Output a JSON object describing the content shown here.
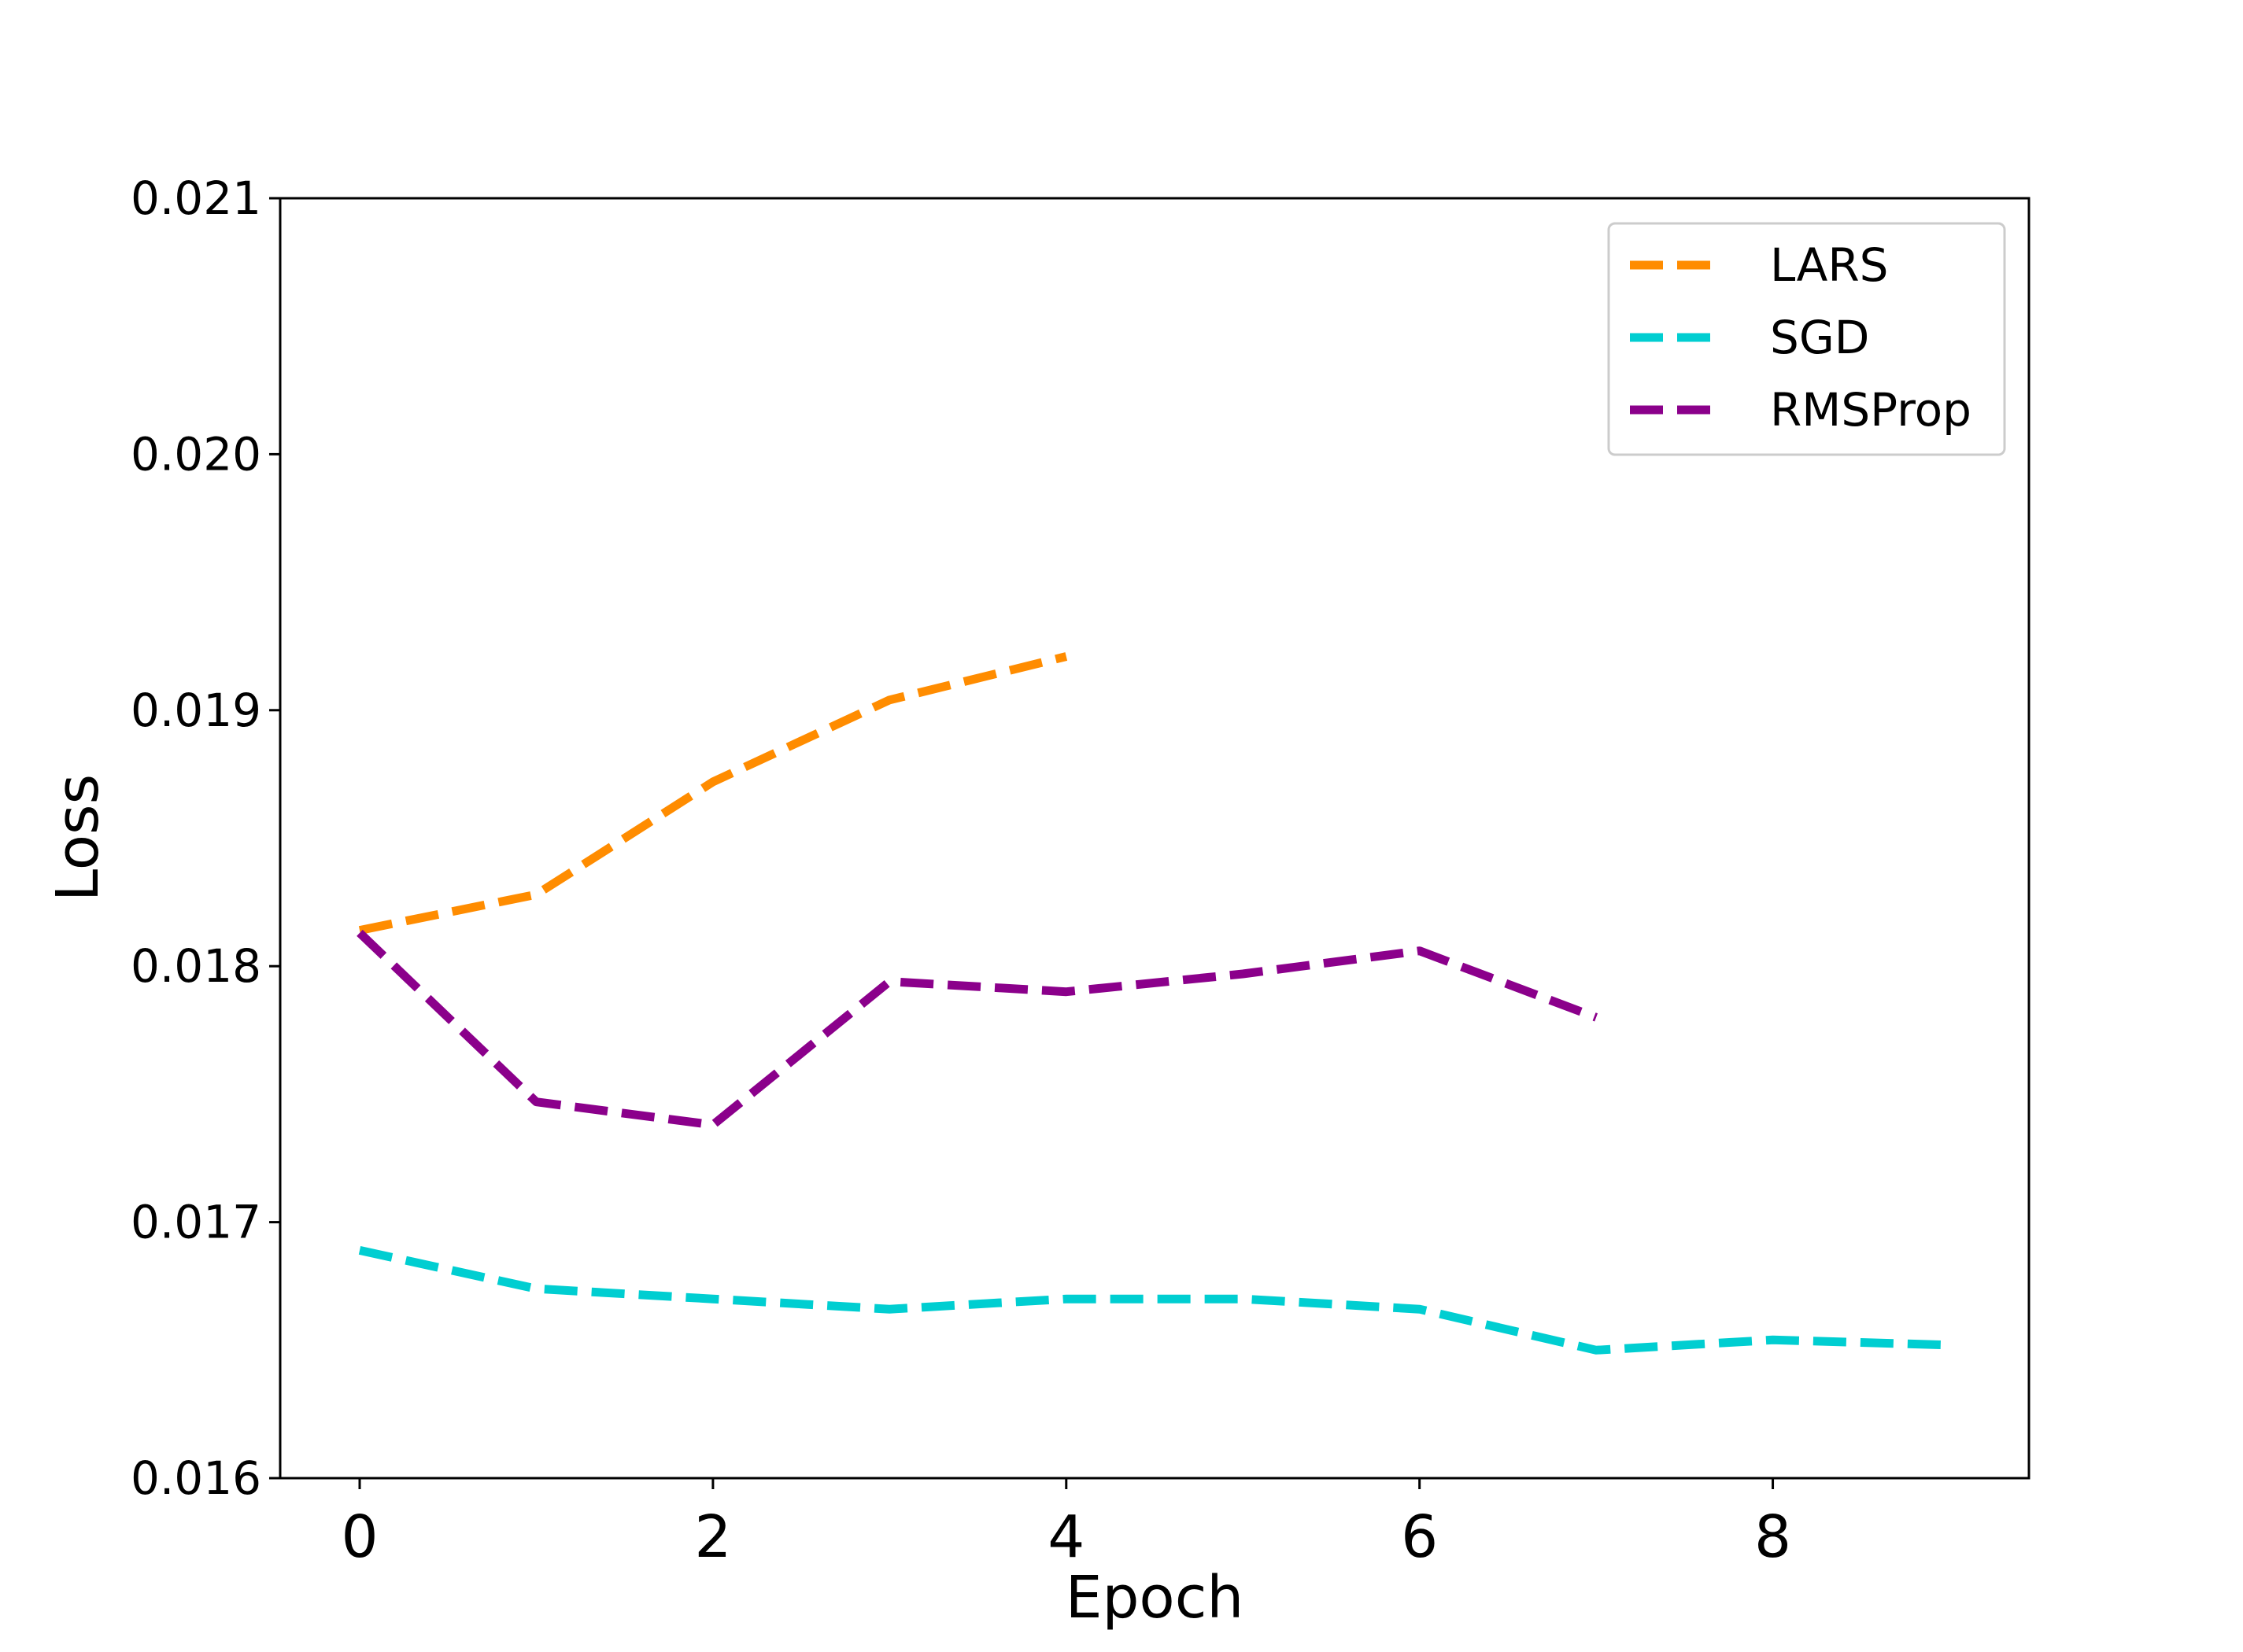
{
  "chart_data": {
    "type": "line",
    "xlabel": "Epoch",
    "ylabel": "Loss",
    "xlim": [
      -0.45,
      9.45
    ],
    "ylim": [
      0.016,
      0.021
    ],
    "xticks": [
      0,
      2,
      4,
      6,
      8
    ],
    "xtick_labels": [
      "0",
      "2",
      "4",
      "6",
      "8"
    ],
    "yticks": [
      0.016,
      0.017,
      0.018,
      0.019,
      0.02,
      0.021
    ],
    "ytick_labels": [
      "0.016",
      "0.017",
      "0.018",
      "0.019",
      "0.020",
      "0.021"
    ],
    "grid": false,
    "legend_position": "top-right",
    "line_style": "dashed",
    "series": [
      {
        "name": "LARS",
        "color": "#ff8c00",
        "x": [
          0,
          1,
          2,
          3,
          4
        ],
        "y": [
          0.01814,
          0.01828,
          0.01872,
          0.01904,
          0.01921
        ]
      },
      {
        "name": "SGD",
        "color": "#00ced1",
        "x": [
          0,
          1,
          2,
          3,
          4,
          5,
          6,
          7,
          8,
          9
        ],
        "y": [
          0.01689,
          0.01674,
          0.0167,
          0.01666,
          0.0167,
          0.0167,
          0.01666,
          0.0165,
          0.01654,
          0.01652
        ]
      },
      {
        "name": "RMSProp",
        "color": "#8b008b",
        "x": [
          0,
          1,
          2,
          3,
          4,
          5,
          6,
          7
        ],
        "y": [
          0.01813,
          0.01747,
          0.01738,
          0.01794,
          0.0179,
          0.01797,
          0.01806,
          0.0178
        ]
      }
    ]
  }
}
